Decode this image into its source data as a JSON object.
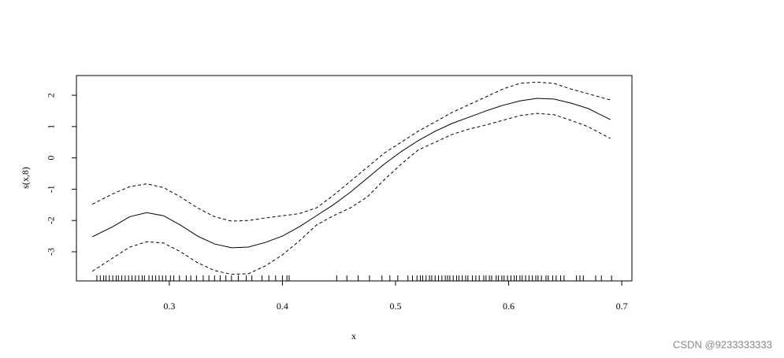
{
  "chart_data": {
    "type": "line",
    "xlabel": "x",
    "ylabel": "s(x,8)",
    "xlim": [
      0.2179,
      0.709
    ],
    "ylim": [
      -3.93,
      2.63
    ],
    "xticks": [
      0.3,
      0.4,
      0.5,
      0.6,
      0.7
    ],
    "yticks": [
      -3,
      -2,
      -1,
      0,
      1,
      2
    ],
    "x": [
      0.232,
      0.25,
      0.265,
      0.28,
      0.295,
      0.31,
      0.325,
      0.34,
      0.355,
      0.37,
      0.385,
      0.4,
      0.415,
      0.43,
      0.445,
      0.46,
      0.475,
      0.49,
      0.505,
      0.52,
      0.535,
      0.55,
      0.565,
      0.58,
      0.595,
      0.61,
      0.625,
      0.64,
      0.655,
      0.67,
      0.69
    ],
    "series": [
      {
        "color": "#000000",
        "dashed": false,
        "values": [
          -2.52,
          -2.2,
          -1.88,
          -1.75,
          -1.85,
          -2.15,
          -2.5,
          -2.75,
          -2.87,
          -2.85,
          -2.7,
          -2.5,
          -2.2,
          -1.85,
          -1.5,
          -1.1,
          -0.65,
          -0.2,
          0.2,
          0.55,
          0.85,
          1.1,
          1.3,
          1.5,
          1.68,
          1.82,
          1.9,
          1.88,
          1.75,
          1.58,
          1.22
        ]
      },
      {
        "color": "#000000",
        "dashed": true,
        "values": [
          -1.48,
          -1.15,
          -0.92,
          -0.83,
          -0.95,
          -1.25,
          -1.6,
          -1.88,
          -2.02,
          -2.0,
          -1.92,
          -1.85,
          -1.78,
          -1.6,
          -1.2,
          -0.75,
          -0.3,
          0.15,
          0.5,
          0.85,
          1.15,
          1.45,
          1.7,
          1.95,
          2.2,
          2.38,
          2.42,
          2.38,
          2.2,
          2.05,
          1.85
        ]
      },
      {
        "color": "#000000",
        "dashed": true,
        "values": [
          -3.62,
          -3.2,
          -2.85,
          -2.68,
          -2.72,
          -3.0,
          -3.35,
          -3.6,
          -3.72,
          -3.7,
          -3.45,
          -3.1,
          -2.65,
          -2.15,
          -1.85,
          -1.6,
          -1.25,
          -0.7,
          -0.2,
          0.25,
          0.5,
          0.75,
          0.92,
          1.05,
          1.2,
          1.35,
          1.42,
          1.38,
          1.2,
          1.0,
          0.62
        ]
      }
    ],
    "rug": [
      0.236,
      0.239,
      0.242,
      0.244,
      0.247,
      0.25,
      0.253,
      0.255,
      0.258,
      0.261,
      0.264,
      0.267,
      0.27,
      0.273,
      0.276,
      0.278,
      0.282,
      0.285,
      0.288,
      0.291,
      0.294,
      0.297,
      0.301,
      0.304,
      0.309,
      0.315,
      0.319,
      0.324,
      0.33,
      0.335,
      0.34,
      0.345,
      0.35,
      0.355,
      0.361,
      0.368,
      0.373,
      0.382,
      0.388,
      0.394,
      0.4,
      0.404,
      0.406,
      0.448,
      0.457,
      0.467,
      0.477,
      0.488,
      0.495,
      0.502,
      0.511,
      0.515,
      0.519,
      0.522,
      0.524,
      0.527,
      0.53,
      0.532,
      0.535,
      0.538,
      0.541,
      0.544,
      0.546,
      0.548,
      0.551,
      0.554,
      0.556,
      0.559,
      0.562,
      0.564,
      0.568,
      0.571,
      0.574,
      0.578,
      0.58,
      0.583,
      0.585,
      0.589,
      0.591,
      0.594,
      0.596,
      0.599,
      0.602,
      0.605,
      0.607,
      0.61,
      0.612,
      0.615,
      0.618,
      0.621,
      0.624,
      0.626,
      0.629,
      0.633,
      0.635,
      0.639,
      0.642,
      0.646,
      0.649,
      0.66,
      0.663,
      0.666,
      0.677,
      0.682,
      0.691
    ]
  },
  "watermark": "CSDN @9233333333"
}
